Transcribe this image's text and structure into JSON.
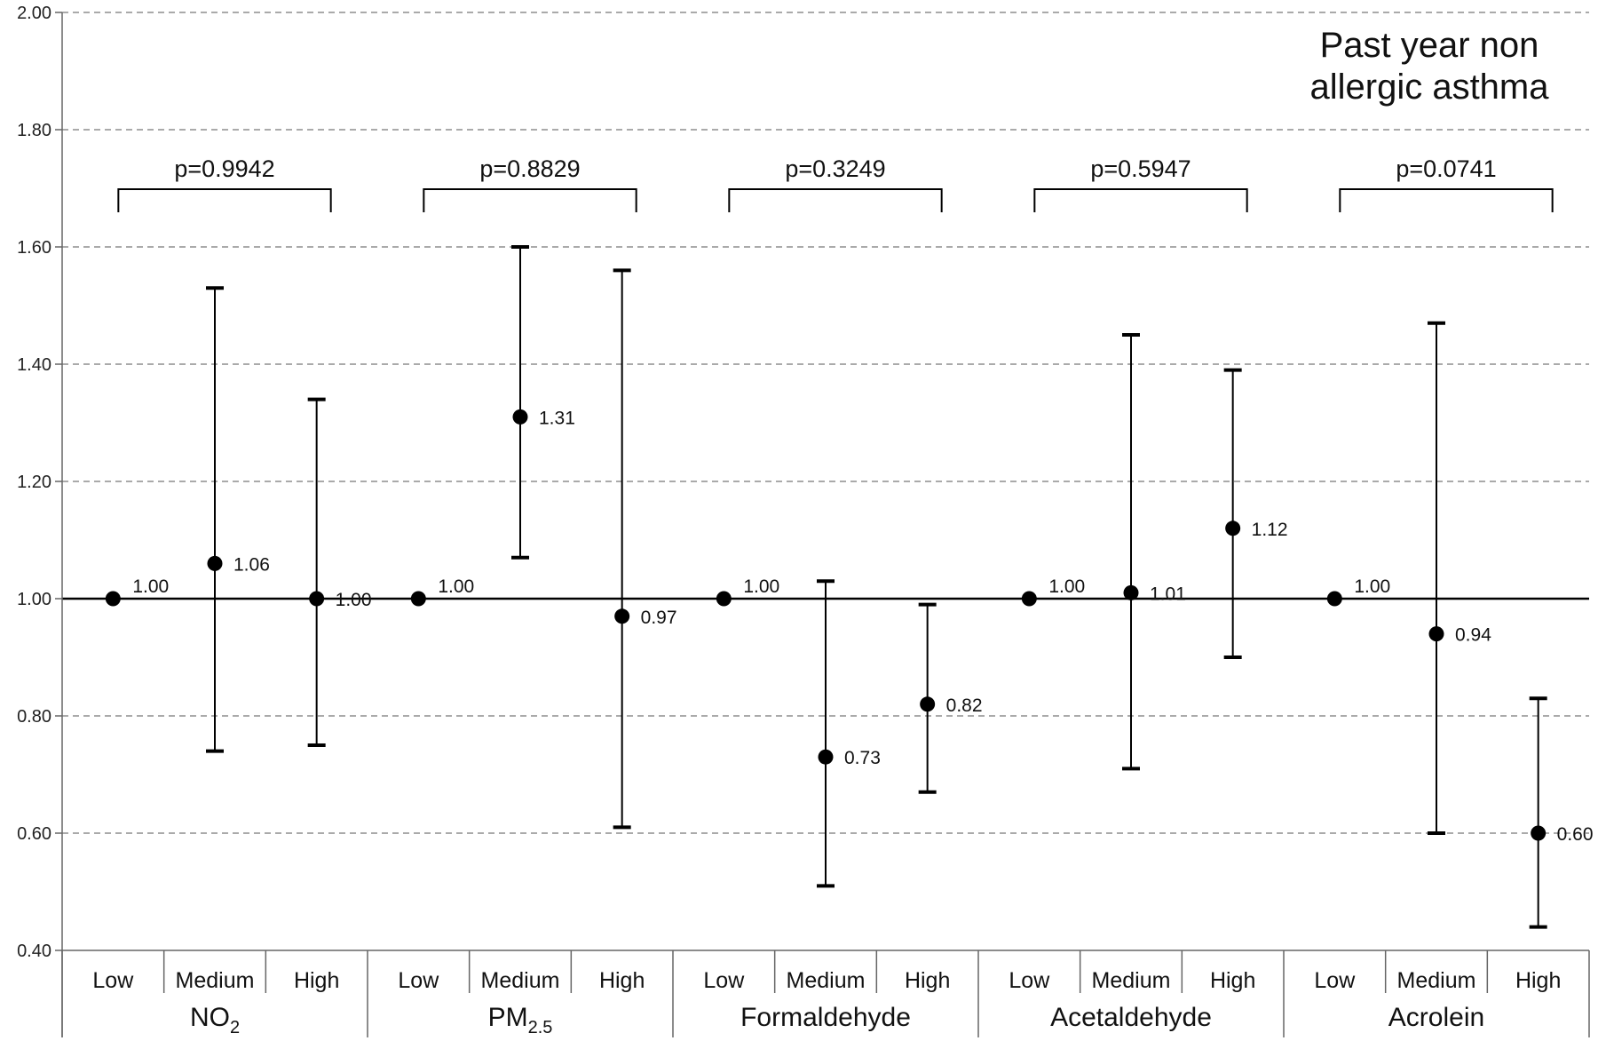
{
  "chart_data": {
    "type": "scatter",
    "title_lines": [
      "Past year non",
      "allergic asthma"
    ],
    "xlabel": "",
    "ylabel": "",
    "ylim": [
      0.4,
      2.0
    ],
    "yticks": [
      "0.40",
      "0.60",
      "0.80",
      "1.00",
      "1.20",
      "1.40",
      "1.60",
      "1.80",
      "2.00"
    ],
    "reference_line": 1.0,
    "grid": true,
    "levels": [
      "Low",
      "Medium",
      "High"
    ],
    "groups": [
      {
        "name": "NO",
        "name_sub": "2",
        "p_value": "p=0.9942",
        "points": [
          {
            "level": "Low",
            "estimate": 1.0,
            "label": "1.00",
            "lower": null,
            "upper": null
          },
          {
            "level": "Medium",
            "estimate": 1.06,
            "label": "1.06",
            "lower": 0.74,
            "upper": 1.53
          },
          {
            "level": "High",
            "estimate": 1.0,
            "label": "1.00",
            "lower": 0.75,
            "upper": 1.34
          }
        ]
      },
      {
        "name": "PM",
        "name_sub": "2.5",
        "p_value": "p=0.8829",
        "points": [
          {
            "level": "Low",
            "estimate": 1.0,
            "label": "1.00",
            "lower": null,
            "upper": null
          },
          {
            "level": "Medium",
            "estimate": 1.31,
            "label": "1.31",
            "lower": 1.07,
            "upper": 1.6
          },
          {
            "level": "High",
            "estimate": 0.97,
            "label": "0.97",
            "lower": 0.61,
            "upper": 1.56
          }
        ]
      },
      {
        "name": "Formaldehyde",
        "name_sub": "",
        "p_value": "p=0.3249",
        "points": [
          {
            "level": "Low",
            "estimate": 1.0,
            "label": "1.00",
            "lower": null,
            "upper": null
          },
          {
            "level": "Medium",
            "estimate": 0.73,
            "label": "0.73",
            "lower": 0.51,
            "upper": 1.03
          },
          {
            "level": "High",
            "estimate": 0.82,
            "label": "0.82",
            "lower": 0.67,
            "upper": 0.99
          }
        ]
      },
      {
        "name": "Acetaldehyde",
        "name_sub": "",
        "p_value": "p=0.5947",
        "points": [
          {
            "level": "Low",
            "estimate": 1.0,
            "label": "1.00",
            "lower": null,
            "upper": null
          },
          {
            "level": "Medium",
            "estimate": 1.01,
            "label": "1.01",
            "lower": 0.71,
            "upper": 1.45
          },
          {
            "level": "High",
            "estimate": 1.12,
            "label": "1.12",
            "lower": 0.9,
            "upper": 1.39
          }
        ]
      },
      {
        "name": "Acrolein",
        "name_sub": "",
        "p_value": "p=0.0741",
        "points": [
          {
            "level": "Low",
            "estimate": 1.0,
            "label": "1.00",
            "lower": null,
            "upper": null
          },
          {
            "level": "Medium",
            "estimate": 0.94,
            "label": "0.94",
            "lower": 0.6,
            "upper": 1.47
          },
          {
            "level": "High",
            "estimate": 0.6,
            "label": "0.60",
            "lower": 0.44,
            "upper": 0.83
          }
        ]
      }
    ]
  }
}
